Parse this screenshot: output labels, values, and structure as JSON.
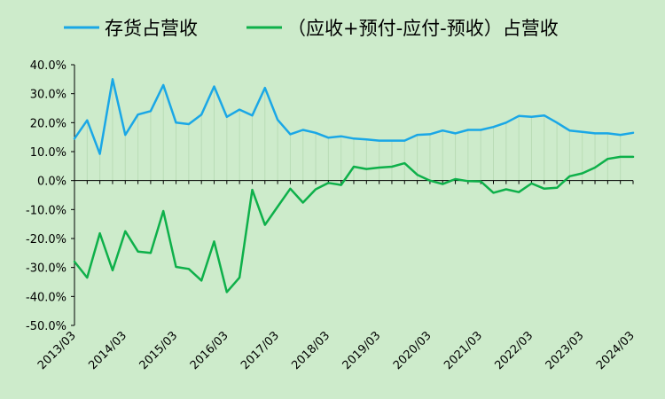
{
  "chart_data": {
    "type": "line",
    "title": "",
    "xlabel": "",
    "ylabel": "",
    "ylim": [
      -50,
      40
    ],
    "y_ticks": [
      -50,
      -40,
      -30,
      -20,
      -10,
      0,
      10,
      20,
      30,
      40
    ],
    "y_tick_format": "percent_one_decimal",
    "x_tick_labels": [
      "2013/03",
      "2014/03",
      "2015/03",
      "2016/03",
      "2017/03",
      "2018/03",
      "2019/03",
      "2020/03",
      "2021/03",
      "2022/03",
      "2023/03",
      "2024/03"
    ],
    "legend_position": "top",
    "grid": false,
    "x": [
      "2013/03",
      "2013/06",
      "2013/09",
      "2013/12",
      "2014/03",
      "2014/06",
      "2014/09",
      "2014/12",
      "2015/03",
      "2015/06",
      "2015/09",
      "2015/12",
      "2016/03",
      "2016/06",
      "2016/09",
      "2016/12",
      "2017/03",
      "2017/06",
      "2017/09",
      "2017/12",
      "2018/03",
      "2018/06",
      "2018/09",
      "2018/12",
      "2019/03",
      "2019/06",
      "2019/09",
      "2019/12",
      "2020/03",
      "2020/06",
      "2020/09",
      "2020/12",
      "2021/03",
      "2021/06",
      "2021/09",
      "2021/12",
      "2022/03",
      "2022/06",
      "2022/09",
      "2022/12",
      "2023/03",
      "2023/06",
      "2023/09",
      "2023/12",
      "2024/03"
    ],
    "series": [
      {
        "name": "存货占营收",
        "color": "#1aa7e6",
        "values": [
          14.5,
          20.8,
          9.2,
          35.0,
          15.8,
          22.8,
          24.0,
          33.0,
          20.0,
          19.5,
          22.8,
          32.5,
          22.0,
          24.5,
          22.5,
          32.0,
          21.0,
          16.0,
          17.5,
          16.5,
          14.8,
          15.3,
          14.5,
          14.2,
          13.8,
          13.8,
          13.8,
          15.8,
          16.0,
          17.3,
          16.3,
          17.5,
          17.5,
          18.5,
          20.0,
          22.3,
          22.0,
          22.5,
          20.0,
          17.3,
          16.8,
          16.3,
          16.3,
          15.8,
          16.5
        ]
      },
      {
        "name": "（应收+预付-应付-预收）占营收",
        "color": "#0eb04a",
        "values": [
          -28.0,
          -33.5,
          -18.2,
          -31.0,
          -17.5,
          -24.5,
          -25.0,
          -10.5,
          -29.8,
          -30.5,
          -34.5,
          -21.0,
          -38.5,
          -33.5,
          -3.2,
          -15.3,
          -9.0,
          -2.8,
          -7.6,
          -3.0,
          -0.8,
          -1.5,
          4.8,
          4.0,
          4.5,
          4.8,
          6.0,
          2.0,
          0.0,
          -1.2,
          0.5,
          -0.2,
          -0.3,
          -4.2,
          -3.0,
          -4.0,
          -1.0,
          -2.8,
          -2.5,
          1.5,
          2.5,
          4.5,
          7.5,
          8.2,
          8.2
        ]
      }
    ]
  }
}
